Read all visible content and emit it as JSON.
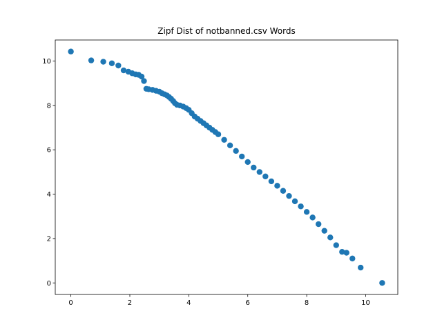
{
  "chart_data": {
    "type": "scatter",
    "title": "Zipf Dist of notbanned.csv Words",
    "x": [
      0,
      0.69,
      1.1,
      1.39,
      1.61,
      1.79,
      1.95,
      2.08,
      2.2,
      2.3,
      2.4,
      2.48,
      2.56,
      2.64,
      2.77,
      2.89,
      3.0,
      3.09,
      3.18,
      3.26,
      3.33,
      3.4,
      3.47,
      3.53,
      3.6,
      3.7,
      3.81,
      3.91,
      4.0,
      4.1,
      4.2,
      4.3,
      4.4,
      4.5,
      4.6,
      4.7,
      4.8,
      4.9,
      5.0,
      5.2,
      5.4,
      5.6,
      5.8,
      6.0,
      6.2,
      6.4,
      6.6,
      6.8,
      7.0,
      7.2,
      7.4,
      7.6,
      7.8,
      8.0,
      8.2,
      8.4,
      8.6,
      8.8,
      9.0,
      9.2,
      9.35,
      9.55,
      9.83,
      10.56
    ],
    "values": [
      10.43,
      10.03,
      9.97,
      9.9,
      9.8,
      9.58,
      9.52,
      9.45,
      9.4,
      9.38,
      9.3,
      9.1,
      8.75,
      8.73,
      8.7,
      8.66,
      8.62,
      8.55,
      8.5,
      8.45,
      8.38,
      8.3,
      8.2,
      8.1,
      8.03,
      8.0,
      7.95,
      7.88,
      7.8,
      7.65,
      7.5,
      7.4,
      7.3,
      7.2,
      7.1,
      7.0,
      6.9,
      6.8,
      6.7,
      6.45,
      6.2,
      5.95,
      5.7,
      5.45,
      5.2,
      5.0,
      4.8,
      4.58,
      4.38,
      4.15,
      3.92,
      3.68,
      3.45,
      3.2,
      2.95,
      2.65,
      2.35,
      2.05,
      1.7,
      1.4,
      1.36,
      1.1,
      0.69,
      0
    ],
    "color": "#1f77b4",
    "xlim": [
      -0.53,
      11.09
    ],
    "xticks": [
      0,
      2,
      4,
      6,
      8,
      10
    ],
    "ylim": [
      -0.52,
      10.95
    ],
    "yticks": [
      0,
      2,
      4,
      6,
      8,
      10
    ]
  }
}
